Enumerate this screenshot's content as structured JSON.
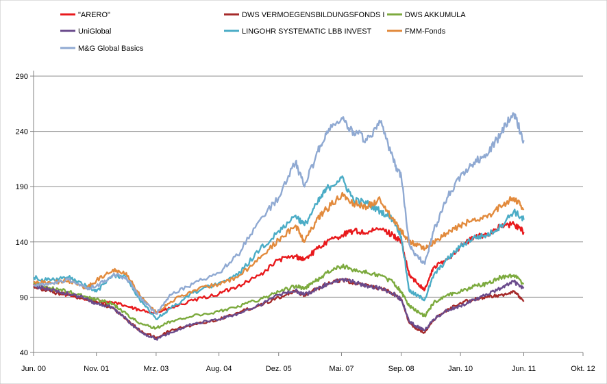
{
  "chart_data": {
    "type": "line",
    "title": "",
    "xlabel": "",
    "ylabel": "",
    "ylim": [
      40,
      290
    ],
    "y_ticks": [
      "290",
      "240",
      "190",
      "140",
      "90",
      "40"
    ],
    "x_tick_labels": [
      "Jun. 00",
      "Nov. 01",
      "Mrz. 03",
      "Aug. 04",
      "Dez. 05",
      "Mai. 07",
      "Sep. 08",
      "Jan. 10",
      "Jun. 11",
      "Okt. 12"
    ],
    "x_tick_years": [
      2000.42,
      2001.83,
      2003.17,
      2004.58,
      2005.92,
      2007.33,
      2008.67,
      2010.0,
      2011.42,
      2012.75
    ],
    "xlim": [
      2000.42,
      2012.75
    ],
    "legend_position": "top",
    "series": [
      {
        "name": "\"ARERO\"",
        "color": "#e8191c",
        "x": [
          2000.42,
          2000.8,
          2001.2,
          2001.6,
          2001.83,
          2002.2,
          2002.5,
          2002.8,
          2003.17,
          2003.5,
          2004.0,
          2004.58,
          2005.0,
          2005.5,
          2005.92,
          2006.3,
          2006.5,
          2006.8,
          2007.0,
          2007.33,
          2007.6,
          2007.9,
          2008.2,
          2008.5,
          2008.67,
          2008.85,
          2009.0,
          2009.2,
          2009.4,
          2009.7,
          2010.0,
          2010.3,
          2010.6,
          2010.9,
          2011.2,
          2011.42
        ],
        "values": [
          101,
          96,
          92,
          88,
          86,
          85,
          82,
          78,
          76,
          80,
          87,
          93,
          100,
          110,
          124,
          127,
          124,
          134,
          140,
          146,
          150,
          148,
          152,
          146,
          140,
          110,
          104,
          97,
          117,
          124,
          136,
          144,
          147,
          154,
          156,
          149
        ]
      },
      {
        "name": "DWS VERMOEGENSBILDUNGSFONDS  I",
        "color": "#a52a2a",
        "x": [
          2000.42,
          2000.8,
          2001.2,
          2001.6,
          2001.83,
          2002.2,
          2002.5,
          2002.8,
          2003.17,
          2003.5,
          2004.0,
          2004.58,
          2005.0,
          2005.5,
          2005.92,
          2006.3,
          2006.5,
          2006.8,
          2007.0,
          2007.33,
          2007.6,
          2007.9,
          2008.2,
          2008.5,
          2008.67,
          2008.85,
          2009.0,
          2009.2,
          2009.4,
          2009.7,
          2010.0,
          2010.3,
          2010.6,
          2010.9,
          2011.2,
          2011.42
        ],
        "values": [
          100,
          95,
          92,
          88,
          86,
          80,
          70,
          60,
          53,
          60,
          65,
          70,
          76,
          83,
          90,
          95,
          92,
          98,
          102,
          106,
          103,
          101,
          98,
          93,
          88,
          67,
          62,
          58,
          70,
          78,
          85,
          88,
          90,
          92,
          95,
          86
        ]
      },
      {
        "name": "DWS AKKUMULA",
        "color": "#7caa3e",
        "x": [
          2000.42,
          2000.8,
          2001.2,
          2001.6,
          2001.83,
          2002.2,
          2002.5,
          2002.8,
          2003.17,
          2003.5,
          2004.0,
          2004.58,
          2005.0,
          2005.5,
          2005.92,
          2006.3,
          2006.5,
          2006.8,
          2007.0,
          2007.33,
          2007.6,
          2007.9,
          2008.2,
          2008.5,
          2008.67,
          2008.85,
          2009.0,
          2009.2,
          2009.4,
          2009.7,
          2010.0,
          2010.3,
          2010.6,
          2010.9,
          2011.2,
          2011.42
        ],
        "values": [
          103,
          98,
          95,
          90,
          88,
          84,
          75,
          66,
          62,
          68,
          73,
          77,
          82,
          88,
          95,
          100,
          98,
          106,
          112,
          118,
          115,
          112,
          110,
          103,
          95,
          82,
          78,
          73,
          85,
          92,
          95,
          100,
          102,
          108,
          110,
          102
        ]
      },
      {
        "name": "UniGlobal",
        "color": "#6a4b8c",
        "x": [
          2000.42,
          2000.8,
          2001.2,
          2001.6,
          2001.83,
          2002.2,
          2002.5,
          2002.8,
          2003.17,
          2003.5,
          2004.0,
          2004.58,
          2005.0,
          2005.5,
          2005.92,
          2006.3,
          2006.5,
          2006.8,
          2007.0,
          2007.33,
          2007.6,
          2007.9,
          2008.2,
          2008.5,
          2008.67,
          2008.85,
          2009.0,
          2009.2,
          2009.4,
          2009.7,
          2010.0,
          2010.3,
          2010.6,
          2010.9,
          2011.2,
          2011.42
        ],
        "values": [
          100,
          97,
          93,
          89,
          84,
          81,
          70,
          59,
          52,
          58,
          66,
          70,
          75,
          83,
          92,
          96,
          92,
          98,
          102,
          106,
          104,
          100,
          98,
          93,
          88,
          68,
          64,
          60,
          70,
          78,
          82,
          88,
          92,
          98,
          104,
          98
        ]
      },
      {
        "name": "LINGOHR SYSTEMATIC  LBB INVEST",
        "color": "#4bacc6",
        "x": [
          2000.42,
          2000.8,
          2001.2,
          2001.6,
          2001.83,
          2002.2,
          2002.5,
          2002.8,
          2003.17,
          2003.5,
          2004.0,
          2004.58,
          2005.0,
          2005.5,
          2005.92,
          2006.3,
          2006.5,
          2006.8,
          2007.0,
          2007.33,
          2007.6,
          2007.9,
          2008.2,
          2008.5,
          2008.67,
          2008.85,
          2009.0,
          2009.2,
          2009.4,
          2009.7,
          2010.0,
          2010.3,
          2010.6,
          2010.9,
          2011.2,
          2011.42
        ],
        "values": [
          108,
          105,
          108,
          100,
          95,
          110,
          108,
          88,
          70,
          80,
          94,
          103,
          110,
          133,
          150,
          164,
          155,
          176,
          188,
          198,
          178,
          175,
          168,
          160,
          145,
          96,
          92,
          88,
          110,
          124,
          136,
          144,
          146,
          154,
          168,
          160
        ]
      },
      {
        "name": "FMM-Fonds",
        "color": "#e28a3c",
        "x": [
          2000.42,
          2000.8,
          2001.2,
          2001.6,
          2001.83,
          2002.2,
          2002.5,
          2002.8,
          2003.17,
          2003.5,
          2004.0,
          2004.58,
          2005.0,
          2005.5,
          2005.92,
          2006.3,
          2006.5,
          2006.8,
          2007.0,
          2007.33,
          2007.6,
          2007.9,
          2008.2,
          2008.5,
          2008.67,
          2008.85,
          2009.0,
          2009.2,
          2009.4,
          2009.7,
          2010.0,
          2010.3,
          2010.6,
          2010.9,
          2011.2,
          2011.42
        ],
        "values": [
          104,
          103,
          105,
          98,
          105,
          115,
          112,
          92,
          76,
          86,
          96,
          102,
          108,
          125,
          142,
          155,
          140,
          162,
          170,
          182,
          175,
          172,
          178,
          160,
          150,
          140,
          138,
          134,
          140,
          148,
          155,
          160,
          162,
          172,
          180,
          170
        ]
      },
      {
        "name": "M&G Global Basics",
        "color": "#8fa9d2",
        "x": [
          2000.42,
          2000.8,
          2001.2,
          2001.6,
          2001.83,
          2002.2,
          2002.5,
          2002.8,
          2003.17,
          2003.5,
          2004.0,
          2004.58,
          2005.0,
          2005.5,
          2005.92,
          2006.3,
          2006.5,
          2006.8,
          2007.0,
          2007.33,
          2007.6,
          2007.9,
          2008.2,
          2008.5,
          2008.67,
          2008.85,
          2009.0,
          2009.2,
          2009.4,
          2009.7,
          2010.0,
          2010.3,
          2010.6,
          2010.9,
          2011.2,
          2011.42
        ],
        "values": [
          100,
          102,
          106,
          98,
          100,
          110,
          108,
          90,
          75,
          92,
          102,
          112,
          128,
          160,
          180,
          212,
          190,
          222,
          240,
          252,
          240,
          232,
          248,
          212,
          200,
          138,
          128,
          120,
          150,
          180,
          200,
          212,
          218,
          238,
          256,
          232
        ]
      }
    ]
  }
}
